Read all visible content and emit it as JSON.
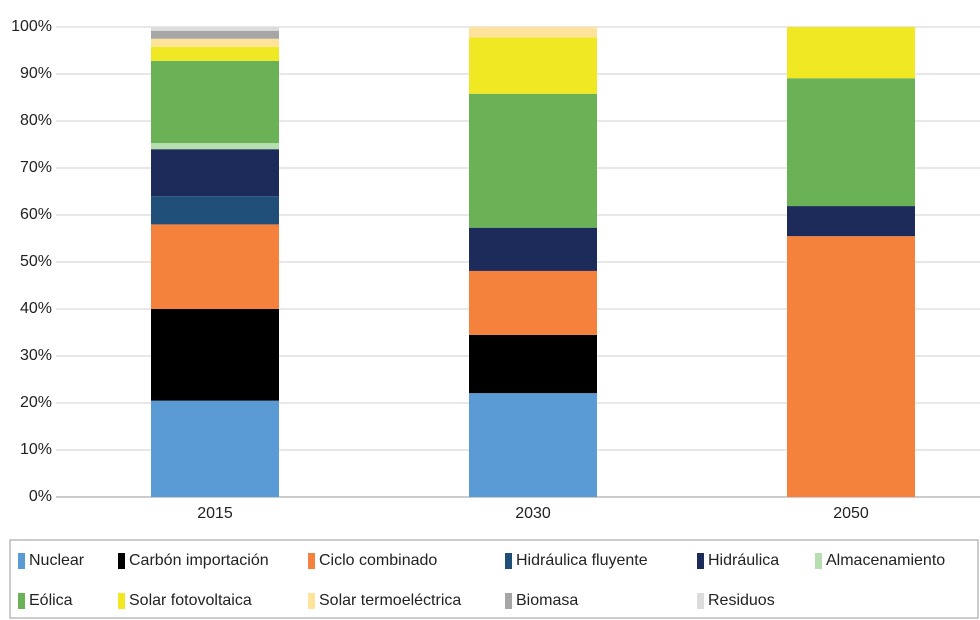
{
  "chart_data": {
    "type": "stacked_bar",
    "categories": [
      "2015",
      "2030",
      "2050"
    ],
    "series": [
      {
        "name": "Nuclear",
        "color": "#5b9bd5",
        "values": [
          20.5,
          22.1,
          0
        ]
      },
      {
        "name": "Carbón importación",
        "color": "#000000",
        "values": [
          19.5,
          12.4,
          0
        ]
      },
      {
        "name": "Ciclo combinado",
        "color": "#f4823c",
        "values": [
          18,
          13.6,
          55.5
        ]
      },
      {
        "name": "Hidráulica fluyente",
        "color": "#1f4e79",
        "values": [
          6,
          0,
          0
        ]
      },
      {
        "name": "Hidráulica",
        "color": "#1c2b5a",
        "values": [
          10,
          9.2,
          6.4
        ]
      },
      {
        "name": "Almacenamiento",
        "color": "#b5dfb0",
        "values": [
          1.3,
          0,
          0
        ]
      },
      {
        "name": "Eólica",
        "color": "#6ab255",
        "values": [
          17.5,
          28.5,
          27.2
        ]
      },
      {
        "name": "Solar fotovoltaica",
        "color": "#f0e823",
        "values": [
          3,
          12,
          10.9
        ]
      },
      {
        "name": "Solar termoeléctrica",
        "color": "#fde49a",
        "values": [
          1.7,
          2.2,
          0
        ]
      },
      {
        "name": "Biomasa",
        "color": "#a6a6a6",
        "values": [
          1.7,
          0,
          0
        ]
      },
      {
        "name": "Residuos",
        "color": "#dcdcdc",
        "values": [
          0.8,
          0,
          0
        ]
      }
    ],
    "ylim": [
      0,
      100
    ],
    "yticks": [
      {
        "value": 0,
        "label": "0%"
      },
      {
        "value": 10,
        "label": "10%"
      },
      {
        "value": 20,
        "label": "20%"
      },
      {
        "value": 30,
        "label": "30%"
      },
      {
        "value": 40,
        "label": "40%"
      },
      {
        "value": 50,
        "label": "50%"
      },
      {
        "value": 60,
        "label": "60%"
      },
      {
        "value": 70,
        "label": "70%"
      },
      {
        "value": 80,
        "label": "80%"
      },
      {
        "value": 90,
        "label": "90%"
      },
      {
        "value": 100,
        "label": "100%"
      }
    ],
    "grid": true,
    "legend": "bottom"
  }
}
